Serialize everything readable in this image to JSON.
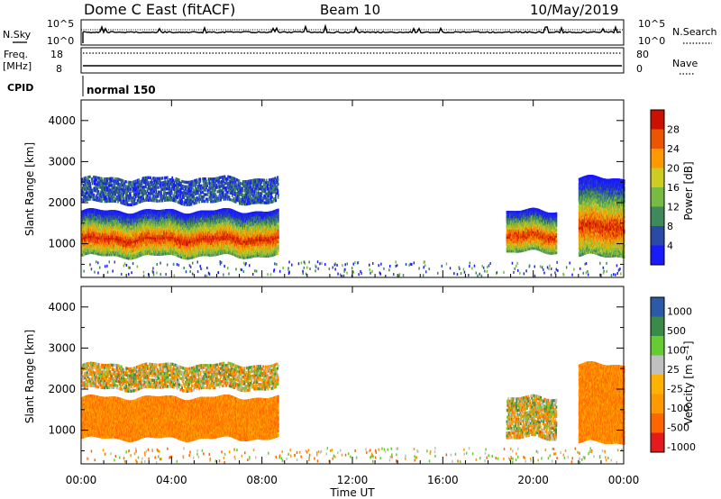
{
  "header": {
    "station": "Dome C East (fitACF)",
    "beam": "Beam 10",
    "date": "10/May/2019"
  },
  "summary_panel": {
    "nsky_label": "N.Sky",
    "nsearch_label": "N.Search",
    "nsky_ticks": [
      "10^5",
      "10^0"
    ],
    "nsearch_ticks": [
      "10^5",
      "10^0"
    ],
    "freq_label": "Freq.",
    "freq_unit": "[MHz]",
    "freq_ticks": [
      "18",
      "8"
    ],
    "nave_label": "Nave",
    "nave_ticks": [
      "80",
      "0"
    ],
    "cpid_label": "CPID",
    "cpid_value": "normal 150"
  },
  "colors": {
    "power": [
      "#1a1aff",
      "#2a4aa8",
      "#3f8a5a",
      "#77bb44",
      "#cccc22",
      "#ff9900",
      "#ee5500",
      "#cc1100"
    ],
    "velocity": [
      "#e41a1c",
      "#ff6600",
      "#ff9900",
      "#ffb200",
      "#c0c0c0",
      "#66cc33",
      "#3a8a4a",
      "#2a5aa8"
    ]
  },
  "chart_data": [
    {
      "type": "heatmap",
      "name": "power",
      "xlabel": "",
      "ylabel": "Slant Range [km]",
      "x_ticks": [
        "00:00",
        "04:00",
        "08:00",
        "12:00",
        "16:00",
        "20:00",
        "00:00"
      ],
      "x_range_hours": [
        0,
        24
      ],
      "y_ticks": [
        1000,
        2000,
        3000,
        4000
      ],
      "ylim": [
        180,
        4500
      ],
      "colorbar_label": "Power [dB]",
      "colorbar_ticks": [
        4,
        8,
        12,
        16,
        20,
        24,
        28
      ],
      "colorbar_range": [
        0,
        32
      ],
      "echo_regions": [
        {
          "t_start": 0.0,
          "t_end": 8.7,
          "range_low": 700,
          "range_high": 1800,
          "level": "strong"
        },
        {
          "t_start": 0.0,
          "t_end": 8.7,
          "range_low": 2000,
          "range_high": 2600,
          "level": "weak"
        },
        {
          "t_start": 18.8,
          "t_end": 21.0,
          "range_low": 800,
          "range_high": 1800,
          "level": "strong"
        },
        {
          "t_start": 22.0,
          "t_end": 24.0,
          "range_low": 700,
          "range_high": 2600,
          "level": "strong"
        }
      ]
    },
    {
      "type": "heatmap",
      "name": "velocity",
      "xlabel": "Time UT",
      "ylabel": "Slant Range [km]",
      "x_ticks": [
        "00:00",
        "04:00",
        "08:00",
        "12:00",
        "16:00",
        "20:00",
        "00:00"
      ],
      "x_range_hours": [
        0,
        24
      ],
      "y_ticks": [
        1000,
        2000,
        3000,
        4000
      ],
      "ylim": [
        180,
        4500
      ],
      "colorbar_label": "Velocity [m s⁻¹]",
      "colorbar_ticks": [
        "1000",
        "500",
        "100",
        "25",
        "-25",
        "-100",
        "-500",
        "-1000"
      ],
      "echo_regions": [
        {
          "t_start": 0.0,
          "t_end": 8.7,
          "range_low": 800,
          "range_high": 1800,
          "level": "away"
        },
        {
          "t_start": 0.0,
          "t_end": 8.7,
          "range_low": 2000,
          "range_high": 2600,
          "level": "mixed"
        },
        {
          "t_start": 18.8,
          "t_end": 21.0,
          "range_low": 800,
          "range_high": 1800,
          "level": "mixed"
        },
        {
          "t_start": 22.0,
          "t_end": 24.0,
          "range_low": 700,
          "range_high": 2600,
          "level": "away"
        }
      ]
    }
  ]
}
